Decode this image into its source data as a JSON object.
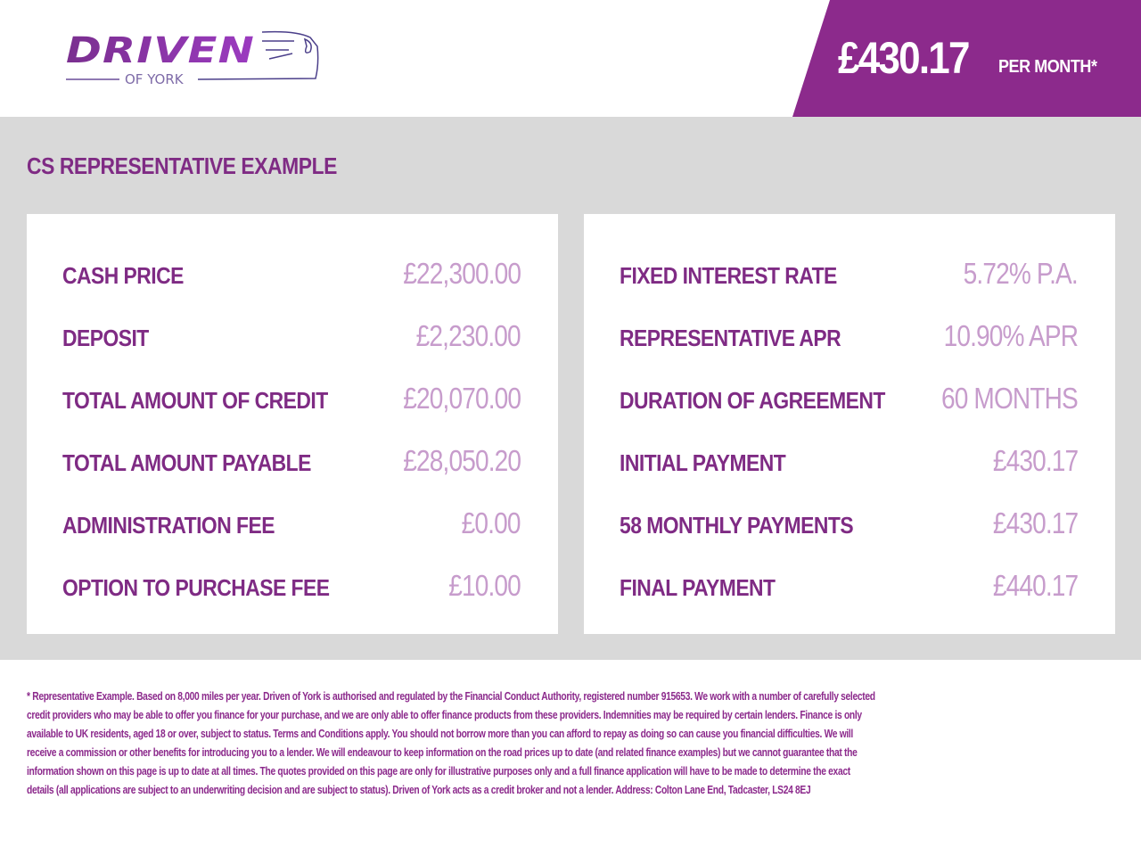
{
  "header": {
    "logo": {
      "brand": "DRIVEN",
      "subtitle": "OF YORK"
    },
    "price": "£430.17",
    "price_suffix": "PER MONTH*",
    "colors": {
      "brand_purple": "#8c2a8c",
      "label_purple": "#7f2b84",
      "value_lilac": "#c79ccc",
      "panel_grey": "#d9d9d9"
    }
  },
  "main": {
    "title": "CS REPRESENTATIVE EXAMPLE",
    "left_card": [
      {
        "label": "CASH PRICE",
        "value": "£22,300.00"
      },
      {
        "label": "DEPOSIT",
        "value": "£2,230.00"
      },
      {
        "label": "TOTAL AMOUNT OF CREDIT",
        "value": "£20,070.00"
      },
      {
        "label": "TOTAL AMOUNT PAYABLE",
        "value": "£28,050.20"
      },
      {
        "label": "ADMINISTRATION FEE",
        "value": "£0.00"
      },
      {
        "label": "OPTION TO PURCHASE FEE",
        "value": "£10.00"
      }
    ],
    "right_card": [
      {
        "label": "FIXED INTEREST RATE",
        "value": "5.72% P.A."
      },
      {
        "label": "REPRESENTATIVE APR",
        "value": "10.90% APR"
      },
      {
        "label": "DURATION OF AGREEMENT",
        "value": "60 MONTHS"
      },
      {
        "label": "INITIAL PAYMENT",
        "value": "£430.17"
      },
      {
        "label": "58 MONTHLY PAYMENTS",
        "value": "£430.17"
      },
      {
        "label": "FINAL PAYMENT",
        "value": "£440.17"
      }
    ]
  },
  "disclaimer": [
    "* Representative Example. Based on 8,000 miles per year. Driven of York is authorised and regulated by the Financial Conduct Authority, registered number 915653. We work with a number of carefully selected",
    "credit providers who may be able to offer you finance for your purchase, and we are only able to offer finance products from these providers. Indemnities may be required by certain lenders. Finance is only",
    "available to UK residents, aged 18 or over, subject to status. Terms and Conditions apply. You should not borrow more than you can afford to repay as doing so can cause you financial difficulties. We will",
    "receive a commission or other benefits for introducing you to a lender. We will endeavour to keep information on the road prices up to date (and related finance examples) but we cannot guarantee that the",
    "information shown on this page is up to date at all times. The quotes provided on this page are only for illustrative purposes only and a full finance application will have to be made to determine the exact",
    "details (all applications are subject to an underwriting decision and are subject to status). Driven of York acts as a credit broker and not a lender. Address: Colton Lane End, Tadcaster, LS24 8EJ"
  ]
}
